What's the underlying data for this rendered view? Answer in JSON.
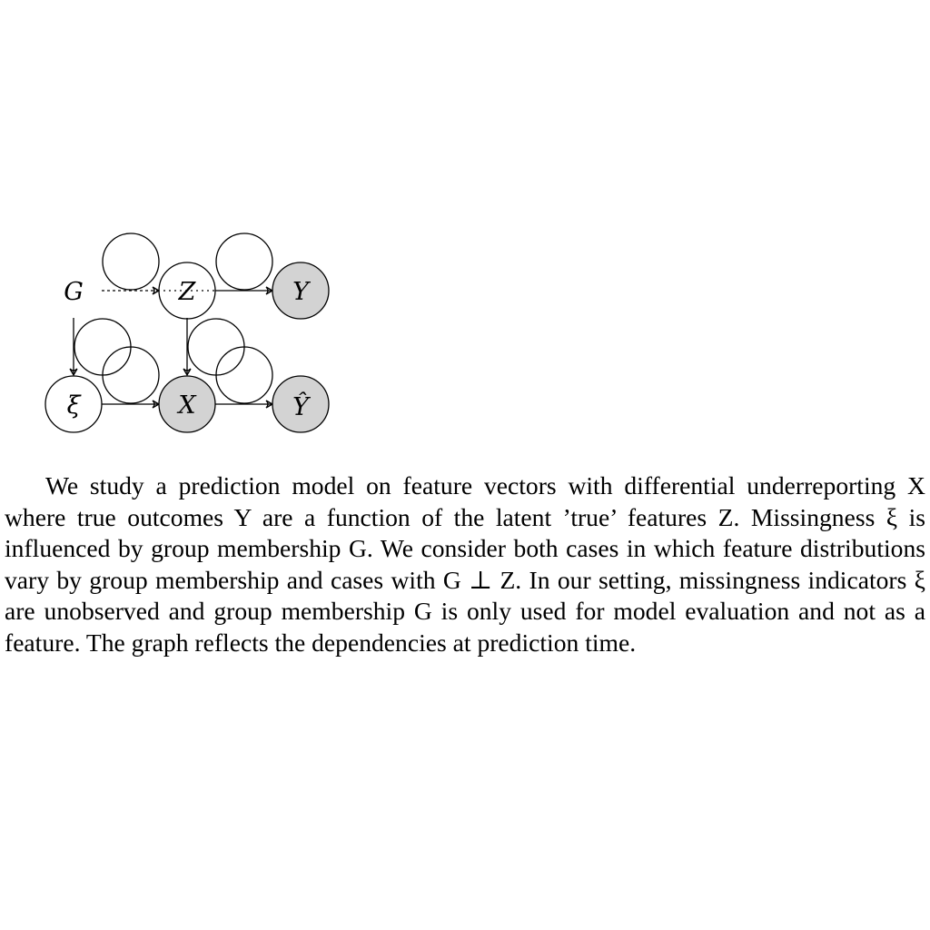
{
  "diagram": {
    "nodes": {
      "G": {
        "label": "G",
        "fill": "none",
        "observed": false
      },
      "Z": {
        "label": "Z",
        "fill": "#ffffff",
        "observed": false
      },
      "Y": {
        "label": "Y",
        "fill": "#d3d3d3",
        "observed": true
      },
      "xi": {
        "label": "ξ",
        "fill": "#ffffff",
        "observed": false
      },
      "X": {
        "label": "X",
        "fill": "#d3d3d3",
        "observed": true
      },
      "Yhat": {
        "label": "Ŷ",
        "fill": "#d3d3d3",
        "observed": true
      }
    },
    "edges": [
      {
        "from": "G",
        "to": "Z",
        "style": "dashed"
      },
      {
        "from": "Z",
        "to": "Y",
        "style": "dotted-solid"
      },
      {
        "from": "G",
        "to": "xi",
        "style": "solid"
      },
      {
        "from": "Z",
        "to": "X",
        "style": "solid"
      },
      {
        "from": "xi",
        "to": "X",
        "style": "solid"
      },
      {
        "from": "X",
        "to": "Yhat",
        "style": "solid"
      }
    ],
    "colors": {
      "observed_fill": "#d3d3d3",
      "stroke": "#000000"
    }
  },
  "caption": {
    "text": "We study a prediction model on feature vectors with differential underreporting X where true outcomes Y are a function of the latent ’true’ features Z. Missingness ξ is influenced by group membership G. We consider both cases in which feature distributions vary by group membership and cases with G ⊥ Z. In our setting, missingness indicators ξ are unobserved and group membership G is only used for model evaluation and not as a feature. The graph reflects the dependencies at prediction time."
  }
}
